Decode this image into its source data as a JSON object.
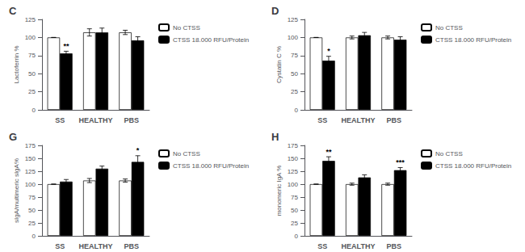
{
  "chart_data": [
    {
      "type": "bar",
      "title": "C",
      "categories": [
        "SS",
        "HEALTHY",
        "PBS"
      ],
      "ylabel": "Lactoferrin %",
      "ylim": [
        0,
        125
      ],
      "yticks": [
        0,
        25,
        50,
        75,
        100,
        125
      ],
      "grid": false,
      "legend": "upper right",
      "series": [
        {
          "name": "No CTSS",
          "color": "#ffffff",
          "values": [
            100,
            107,
            107
          ],
          "errors": [
            0,
            5,
            3
          ]
        },
        {
          "name": "CTSS 18.000 RFU/Protein",
          "color": "#000000",
          "values": [
            78,
            107,
            96
          ],
          "errors": [
            3,
            6,
            5
          ]
        }
      ],
      "annotations": [
        {
          "text": "**",
          "category": "SS",
          "series": "CTSS 18.000 RFU/Protein"
        }
      ]
    },
    {
      "type": "bar",
      "title": "D",
      "categories": [
        "SS",
        "HEALTHY",
        "PBS"
      ],
      "ylabel": "Cystatin C %",
      "ylim": [
        0,
        125
      ],
      "yticks": [
        0,
        25,
        50,
        75,
        100,
        125
      ],
      "grid": false,
      "legend": "upper right",
      "series": [
        {
          "name": "No CTSS",
          "color": "#ffffff",
          "values": [
            100,
            100,
            100
          ],
          "errors": [
            0,
            2,
            2
          ]
        },
        {
          "name": "CTSS 18.000 RFU/Protein",
          "color": "#000000",
          "values": [
            68,
            103,
            97
          ],
          "errors": [
            6,
            4,
            4
          ]
        }
      ],
      "annotations": [
        {
          "text": "*",
          "category": "SS",
          "series": "CTSS 18.000 RFU/Protein"
        }
      ]
    },
    {
      "type": "bar",
      "title": "G",
      "categories": [
        "SS",
        "HEALTHY",
        "PBS"
      ],
      "ylabel": "sIgA/multimeric sIgA%",
      "ylim": [
        0,
        175
      ],
      "yticks": [
        0,
        25,
        50,
        75,
        100,
        125,
        150,
        175
      ],
      "grid": false,
      "legend": "upper right",
      "series": [
        {
          "name": "No CTSS",
          "color": "#ffffff",
          "values": [
            100,
            107,
            107
          ],
          "errors": [
            0,
            4,
            3
          ]
        },
        {
          "name": "CTSS 18.000 RFU/Protein",
          "color": "#000000",
          "values": [
            105,
            130,
            143
          ],
          "errors": [
            4,
            5,
            12
          ]
        }
      ],
      "annotations": [
        {
          "text": "*",
          "category": "PBS",
          "series": "CTSS 18.000 RFU/Protein"
        }
      ]
    },
    {
      "type": "bar",
      "title": "H",
      "categories": [
        "SS",
        "HEALTHY",
        "PBS"
      ],
      "ylabel": "monomeric IgA %",
      "ylim": [
        0,
        175
      ],
      "yticks": [
        0,
        25,
        50,
        75,
        100,
        125,
        150,
        175
      ],
      "grid": false,
      "legend": "upper right",
      "series": [
        {
          "name": "No CTSS",
          "color": "#ffffff",
          "values": [
            100,
            100,
            100
          ],
          "errors": [
            0,
            2,
            2
          ]
        },
        {
          "name": "CTSS 18.000 RFU/Protein",
          "color": "#000000",
          "values": [
            145,
            113,
            127
          ],
          "errors": [
            8,
            5,
            5
          ]
        }
      ],
      "annotations": [
        {
          "text": "**",
          "category": "SS",
          "series": "CTSS 18.000 RFU/Protein"
        },
        {
          "text": "***",
          "category": "PBS",
          "series": "CTSS 18.000 RFU/Protein"
        }
      ]
    }
  ]
}
